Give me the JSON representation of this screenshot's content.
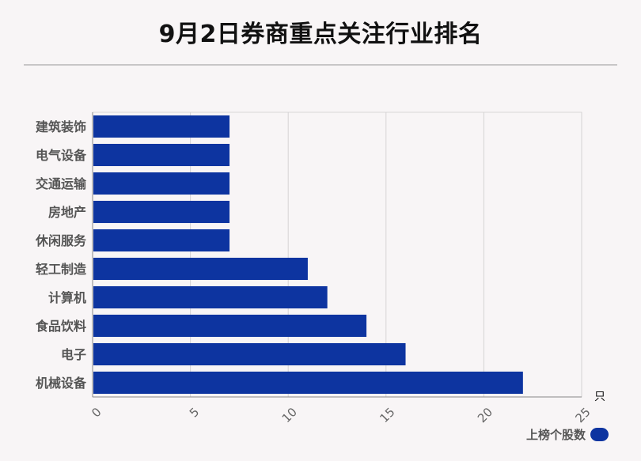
{
  "chart_data": {
    "type": "bar",
    "orientation": "horizontal",
    "title": "9月2日券商重点关注行业排名",
    "categories": [
      "建筑装饰",
      "电气设备",
      "交通运输",
      "房地产",
      "休闲服务",
      "轻工制造",
      "计算机",
      "食品饮料",
      "电子",
      "机械设备"
    ],
    "series": [
      {
        "name": "上榜个股数",
        "values": [
          7,
          7,
          7,
          7,
          7,
          11,
          12,
          14,
          16,
          22
        ],
        "color": "#0d34a0"
      }
    ],
    "xlim": [
      0,
      25
    ],
    "xticks": [
      "0",
      "5",
      "10",
      "15",
      "20",
      "25"
    ],
    "xunit": "只",
    "grid": true,
    "legend_position": "bottom-right"
  }
}
